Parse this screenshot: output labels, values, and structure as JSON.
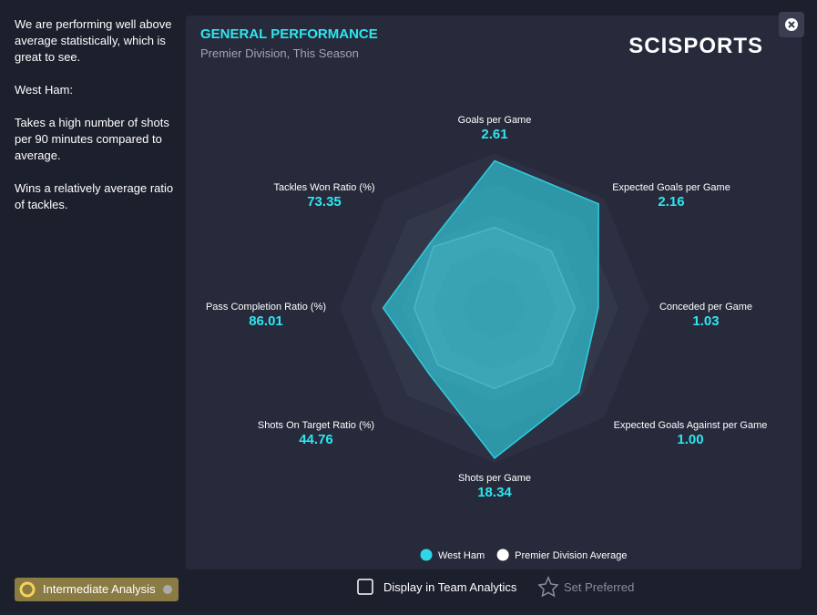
{
  "sidebar": {
    "paragraphs": [
      "We are performing well above average statistically, which is great to see.",
      "West Ham:",
      "Takes a high number of shots per 90 minutes compared to average.",
      "Wins a relatively average ratio of tackles."
    ]
  },
  "panel": {
    "title": "GENERAL PERFORMANCE",
    "subtitle": "Premier Division, This Season",
    "logo": "SCISPORTS"
  },
  "chart_data": {
    "type": "radar",
    "categories": [
      "Goals per Game",
      "Expected Goals per Game",
      "Conceded per Game",
      "Expected Goals Against per Game",
      "Shots per Game",
      "Shots On Target Ratio (%)",
      "Pass Completion Ratio (%)",
      "Tackles Won Ratio (%)"
    ],
    "axis_values": [
      "2.61",
      "2.16",
      "1.03",
      "1.00",
      "18.34",
      "44.76",
      "86.01",
      "73.35"
    ],
    "series": [
      {
        "name": "West Ham",
        "color": "#2fd6e6",
        "values": [
          95,
          95,
          67,
          77,
          97,
          60,
          72,
          59
        ]
      },
      {
        "name": "Premier Division Average",
        "color": "#ffffff",
        "values": [
          52,
          52,
          52,
          52,
          52,
          52,
          52,
          56
        ]
      }
    ],
    "rlim": [
      0,
      100
    ],
    "rticks": [
      20,
      40,
      60,
      80,
      100
    ]
  },
  "footer": {
    "analysis_button": "Intermediate Analysis",
    "checkbox": "Display in Team Analytics",
    "set_preferred": "Set Preferred"
  }
}
